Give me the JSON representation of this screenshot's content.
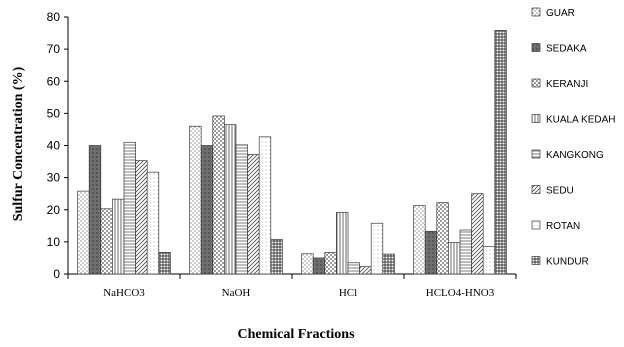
{
  "chart_data": {
    "type": "bar",
    "title": "",
    "xlabel": "Chemical Fractions",
    "ylabel": "Sulfur Concentration (%)",
    "ylim": [
      0,
      80
    ],
    "yticks": [
      0,
      10,
      20,
      30,
      40,
      50,
      60,
      70,
      80
    ],
    "categories": [
      "NaHCO3",
      "NaOH",
      "HCl",
      "HCLO4-HNO3"
    ],
    "legend_position": "right",
    "grid": false,
    "series": [
      {
        "name": "GUAR",
        "values": [
          25.8,
          46.0,
          6.3,
          21.3
        ],
        "pattern": "dots"
      },
      {
        "name": "SEDAKA",
        "values": [
          40.0,
          40.0,
          5.0,
          13.3
        ],
        "pattern": "solid-dark"
      },
      {
        "name": "KERANJI",
        "values": [
          20.3,
          49.2,
          6.7,
          22.2
        ],
        "pattern": "checker"
      },
      {
        "name": "KUALA KEDAH",
        "values": [
          23.3,
          46.5,
          19.2,
          9.8
        ],
        "pattern": "vertical-lines"
      },
      {
        "name": "KANGKONG",
        "values": [
          41.0,
          40.2,
          3.5,
          13.7
        ],
        "pattern": "horizontal-lines"
      },
      {
        "name": "SEDU",
        "values": [
          35.3,
          37.2,
          2.3,
          25.0
        ],
        "pattern": "diagonal"
      },
      {
        "name": "ROTAN",
        "values": [
          31.7,
          42.7,
          15.8,
          8.5
        ],
        "pattern": "light-dots"
      },
      {
        "name": "KUNDUR",
        "values": [
          6.7,
          10.8,
          6.2,
          75.8
        ],
        "pattern": "grid"
      }
    ]
  }
}
